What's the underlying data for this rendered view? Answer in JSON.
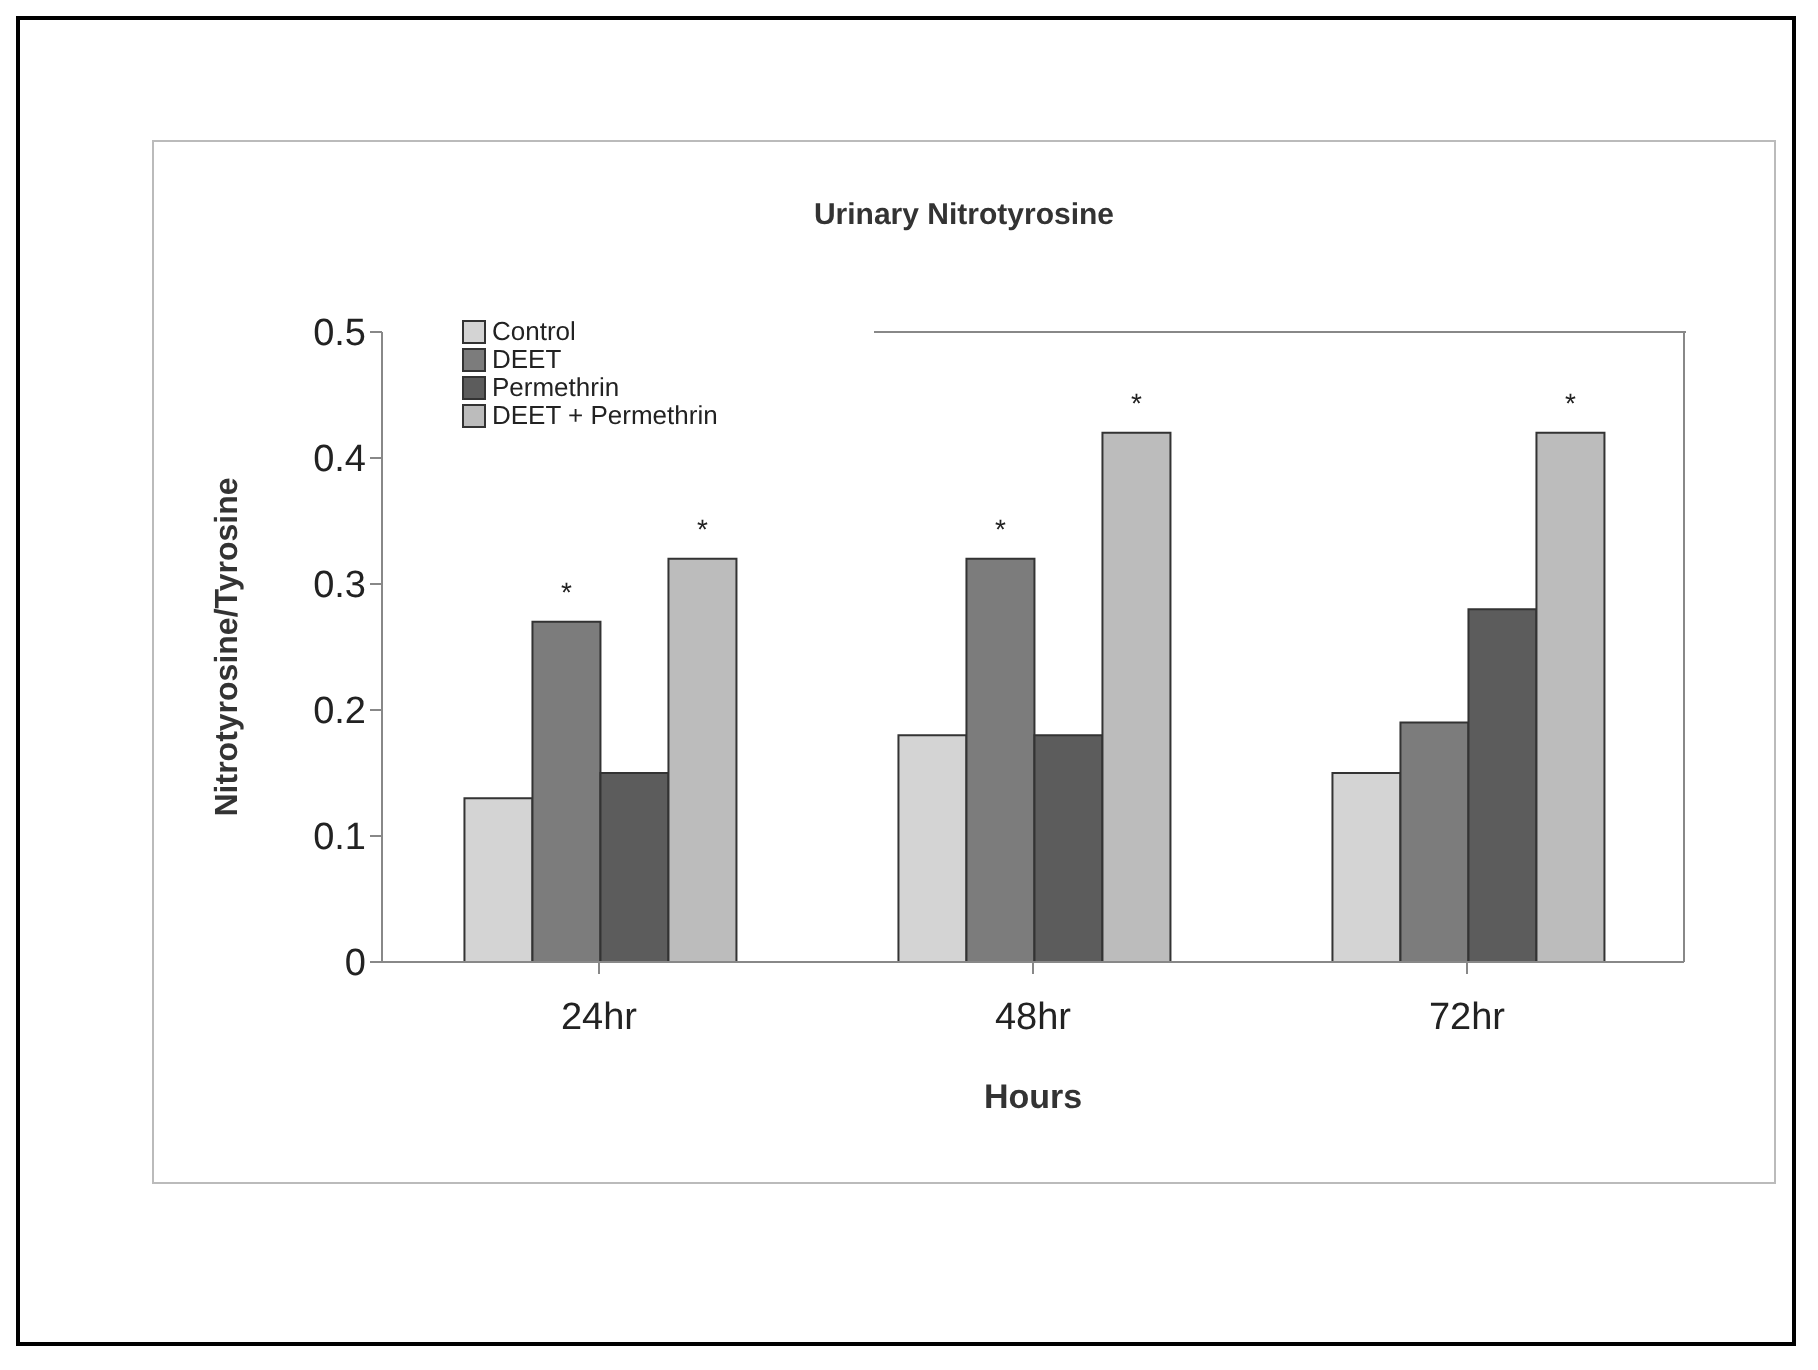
{
  "chart_data": {
    "type": "bar",
    "title": "Urinary Nitrotyrosine",
    "xlabel": "Hours",
    "ylabel": "Nitrotyrosine/Tyrosine",
    "categories": [
      "24hr",
      "48hr",
      "72hr"
    ],
    "series": [
      {
        "name": "Control",
        "color": "#d4d4d4",
        "values": [
          0.13,
          0.18,
          0.15
        ]
      },
      {
        "name": "DEET",
        "color": "#7c7c7c",
        "values": [
          0.27,
          0.32,
          0.19
        ],
        "value_labels": [
          "*",
          "*",
          null
        ]
      },
      {
        "name": "Permethrin",
        "color": "#5c5c5c",
        "values": [
          0.15,
          0.18,
          0.28
        ]
      },
      {
        "name": "DEET + Permethrin",
        "color": "#bcbcbc",
        "values": [
          0.32,
          0.42,
          0.42
        ],
        "value_labels": [
          "*",
          "*",
          "*"
        ]
      }
    ],
    "ylim": [
      0,
      0.5
    ],
    "yticks": [
      0,
      0.1,
      0.2,
      0.3,
      0.4,
      0.5
    ],
    "grid": false,
    "legend": "top left"
  }
}
